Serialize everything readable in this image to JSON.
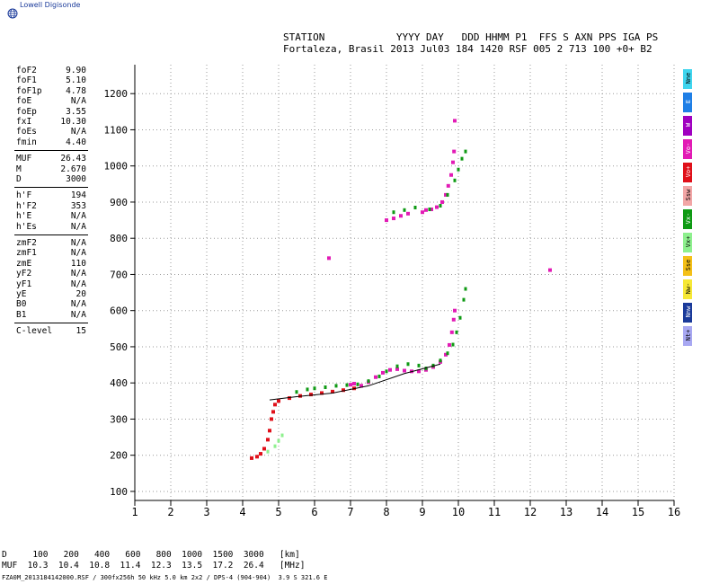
{
  "logo_text": "Lowell Digisonde",
  "header": {
    "line1": "STATION            YYYY DAY   DDD HHMM P1  FFS S AXN PPS IGA PS",
    "line2": "Fortaleza, Brasil 2013 Jul03 184 1420 RSF 005 2 713 100 +0+ B2"
  },
  "params": [
    {
      "group": 1,
      "k": "foF2",
      "v": "9.90"
    },
    {
      "group": 1,
      "k": "foF1",
      "v": "5.10"
    },
    {
      "group": 1,
      "k": "foF1p",
      "v": "4.78"
    },
    {
      "group": 1,
      "k": "foE",
      "v": "N/A"
    },
    {
      "group": 1,
      "k": "foEp",
      "v": "3.55"
    },
    {
      "group": 1,
      "k": "fxI",
      "v": "10.30"
    },
    {
      "group": 1,
      "k": "foEs",
      "v": "N/A"
    },
    {
      "group": 1,
      "k": "fmin",
      "v": "4.40"
    },
    {
      "group": 2,
      "k": "MUF",
      "v": "26.43"
    },
    {
      "group": 2,
      "k": "M",
      "v": "2.670"
    },
    {
      "group": 2,
      "k": "D",
      "v": "3000"
    },
    {
      "group": 3,
      "k": "h'F",
      "v": "194"
    },
    {
      "group": 3,
      "k": "h'F2",
      "v": "353"
    },
    {
      "group": 3,
      "k": "h'E",
      "v": "N/A"
    },
    {
      "group": 3,
      "k": "h'Es",
      "v": "N/A"
    },
    {
      "group": 4,
      "k": "zmF2",
      "v": "N/A"
    },
    {
      "group": 4,
      "k": "zmF1",
      "v": "N/A"
    },
    {
      "group": 4,
      "k": "zmE",
      "v": "110"
    },
    {
      "group": 4,
      "k": "yF2",
      "v": "N/A"
    },
    {
      "group": 4,
      "k": "yF1",
      "v": "N/A"
    },
    {
      "group": 4,
      "k": "yE",
      "v": "20"
    },
    {
      "group": 4,
      "k": "B0",
      "v": "N/A"
    },
    {
      "group": 4,
      "k": "B1",
      "v": "N/A"
    },
    {
      "group": 5,
      "k": "C-level",
      "v": "15"
    }
  ],
  "legend": [
    {
      "label": "Nne",
      "color": "#3fd5ee"
    },
    {
      "label": "E",
      "color": "#1f7fe6"
    },
    {
      "label": "W",
      "color": "#a000c0"
    },
    {
      "label": "Vo-",
      "color": "#e21bb5"
    },
    {
      "label": "Vo+",
      "color": "#e0101a"
    },
    {
      "label": "Ssw",
      "color": "#f2a6a6"
    },
    {
      "label": "Vx-",
      "color": "#0f9a14"
    },
    {
      "label": "Vx+",
      "color": "#8ef08e"
    },
    {
      "label": "Sse",
      "color": "#f4c018"
    },
    {
      "label": "Nw-",
      "color": "#f6e836"
    },
    {
      "label": "Nnw",
      "color": "#1a3a9a"
    },
    {
      "label": "Nt+",
      "color": "#a8a8f2"
    }
  ],
  "bottom": {
    "line1": "D     100   200   400   600   800  1000  1500  3000   [km]",
    "line2": "MUF  10.3  10.4  10.8  11.4  12.3  13.5  17.2  26.4   [MHz]",
    "footer": "FZA0M_2013184142000.RSF / 300fx256h 50 kHz 5.0 km 2x2 / DPS-4 (904-904)  3.9 S 321.6 E"
  },
  "chart_data": {
    "type": "scatter",
    "xlim": [
      1,
      16
    ],
    "ylim": [
      75,
      1280
    ],
    "x_ticks": [
      1,
      2,
      3,
      4,
      5,
      6,
      7,
      8,
      9,
      10,
      11,
      12,
      13,
      14,
      15,
      16
    ],
    "y_ticks": [
      100,
      200,
      300,
      400,
      500,
      600,
      700,
      800,
      900,
      1000,
      1100,
      1200
    ],
    "grid": true,
    "xlabel": "",
    "ylabel": "",
    "series": [
      {
        "mode": "O",
        "color": "#e0101a",
        "points": [
          [
            4.25,
            192
          ],
          [
            4.4,
            196
          ],
          [
            4.5,
            204
          ],
          [
            4.6,
            218
          ],
          [
            4.7,
            243
          ],
          [
            4.75,
            268
          ],
          [
            4.8,
            300
          ],
          [
            4.85,
            320
          ],
          [
            4.9,
            340
          ],
          [
            5.0,
            350
          ],
          [
            5.3,
            358
          ],
          [
            5.6,
            364
          ],
          [
            5.9,
            368
          ],
          [
            6.2,
            372
          ],
          [
            6.5,
            376
          ],
          [
            6.8,
            380
          ],
          [
            7.1,
            385
          ],
          [
            7.3,
            392
          ]
        ]
      },
      {
        "mode": "O",
        "color": "#e21bb5",
        "points": [
          [
            7.3,
            392
          ],
          [
            7.5,
            402
          ],
          [
            7.7,
            416
          ],
          [
            7.9,
            428
          ],
          [
            8.1,
            436
          ],
          [
            8.3,
            438
          ],
          [
            8.5,
            434
          ],
          [
            8.7,
            432
          ],
          [
            8.9,
            432
          ],
          [
            9.1,
            436
          ],
          [
            9.3,
            444
          ],
          [
            9.5,
            458
          ],
          [
            9.65,
            478
          ],
          [
            9.75,
            505
          ],
          [
            9.82,
            540
          ],
          [
            9.87,
            575
          ],
          [
            9.9,
            600
          ],
          [
            9.25,
            880
          ],
          [
            9.4,
            886
          ],
          [
            9.55,
            900
          ],
          [
            9.65,
            920
          ],
          [
            9.72,
            945
          ],
          [
            9.8,
            975
          ],
          [
            9.85,
            1010
          ],
          [
            9.88,
            1040
          ],
          [
            9.9,
            1125
          ],
          [
            8.0,
            850
          ],
          [
            8.2,
            855
          ],
          [
            8.4,
            862
          ],
          [
            8.6,
            868
          ],
          [
            9.0,
            872
          ],
          [
            9.1,
            878
          ],
          [
            6.4,
            745
          ],
          [
            12.55,
            712
          ],
          [
            7.1,
            398
          ],
          [
            7.0,
            395
          ]
        ]
      },
      {
        "mode": "X",
        "color": "#0f9a14",
        "points": [
          [
            5.5,
            375
          ],
          [
            5.8,
            382
          ],
          [
            6.0,
            385
          ],
          [
            6.3,
            388
          ],
          [
            6.6,
            392
          ],
          [
            6.9,
            394
          ],
          [
            7.2,
            396
          ],
          [
            7.5,
            405
          ],
          [
            7.8,
            418
          ],
          [
            8.0,
            432
          ],
          [
            8.3,
            446
          ],
          [
            8.6,
            452
          ],
          [
            8.9,
            448
          ],
          [
            9.1,
            440
          ],
          [
            9.3,
            448
          ],
          [
            9.5,
            462
          ],
          [
            9.7,
            482
          ],
          [
            9.85,
            506
          ],
          [
            9.95,
            540
          ],
          [
            10.05,
            580
          ],
          [
            10.15,
            630
          ],
          [
            10.2,
            660
          ],
          [
            8.2,
            872
          ],
          [
            8.5,
            878
          ],
          [
            8.8,
            885
          ],
          [
            9.2,
            880
          ],
          [
            9.5,
            890
          ],
          [
            9.7,
            920
          ],
          [
            9.9,
            960
          ],
          [
            10.0,
            990
          ],
          [
            10.1,
            1020
          ],
          [
            10.2,
            1040
          ]
        ]
      },
      {
        "mode": "X",
        "color": "#8ef08e",
        "points": [
          [
            4.7,
            210
          ],
          [
            4.9,
            225
          ],
          [
            5.0,
            240
          ],
          [
            5.1,
            255
          ]
        ]
      },
      {
        "mode": "trace",
        "color": "#000000",
        "points": [
          [
            4.75,
            353
          ],
          [
            5.5,
            362
          ],
          [
            6.5,
            372
          ],
          [
            7.5,
            392
          ],
          [
            8.5,
            426
          ],
          [
            9.5,
            452
          ]
        ]
      }
    ]
  }
}
